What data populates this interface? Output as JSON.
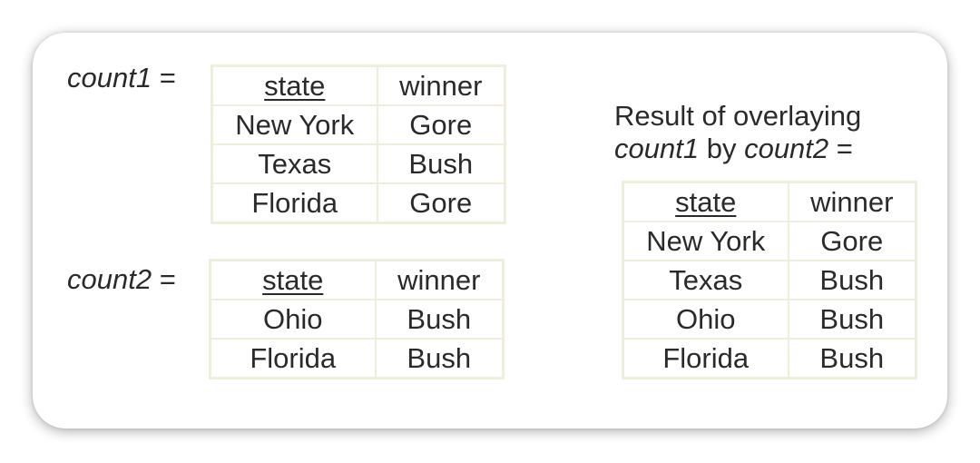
{
  "labels": {
    "count1_name": "count1",
    "count2_name": "count2",
    "equals": "=",
    "result_line1": "Result of overlaying",
    "result_name1": "count1",
    "result_by": "by",
    "result_name2": "count2",
    "result_equals": "="
  },
  "tables": {
    "count1": {
      "headers": [
        "state",
        "winner"
      ],
      "rows": [
        [
          "New York",
          "Gore"
        ],
        [
          "Texas",
          "Bush"
        ],
        [
          "Florida",
          "Gore"
        ]
      ]
    },
    "count2": {
      "headers": [
        "state",
        "winner"
      ],
      "rows": [
        [
          "Ohio",
          "Bush"
        ],
        [
          "Florida",
          "Bush"
        ]
      ]
    },
    "result": {
      "headers": [
        "state",
        "winner"
      ],
      "rows": [
        [
          "New York",
          "Gore"
        ],
        [
          "Texas",
          "Bush"
        ],
        [
          "Ohio",
          "Bush"
        ],
        [
          "Florida",
          "Bush"
        ]
      ]
    }
  },
  "colors": {
    "table_border": "#eeeedb",
    "text": "#2a2a2a"
  }
}
